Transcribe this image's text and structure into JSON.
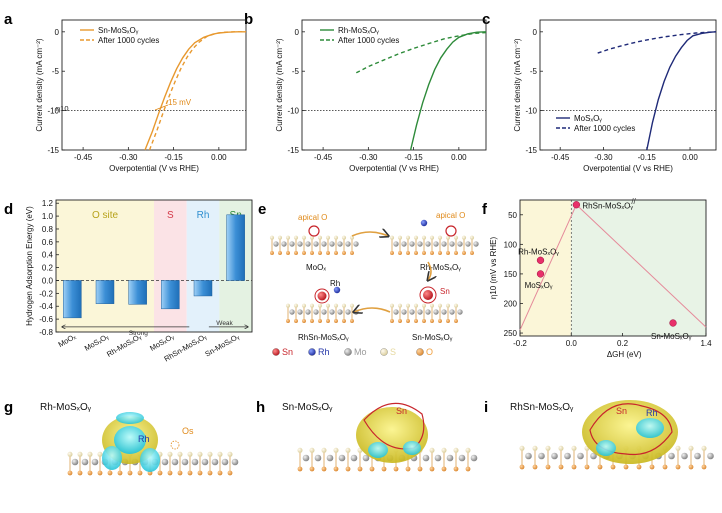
{
  "panel_labels": {
    "a": "a",
    "b": "b",
    "c": "c",
    "d": "d",
    "e": "e",
    "f": "f",
    "g": "g",
    "h": "h",
    "i": "i"
  },
  "colors": {
    "a_series": "#e8992f",
    "b_series": "#2e8b3a",
    "c_series": "#1f2a78",
    "d_bar": "#3c8fd6",
    "f_point": "#e8306a",
    "f_line": "#e58a9a",
    "d_band_O": "#fbf6d8",
    "d_band_S": "#fbe3e6",
    "d_band_Rh": "#e3f1fb",
    "d_band_Sn": "#e4f2e2"
  },
  "chart_data": [
    {
      "id": "a",
      "type": "line",
      "xlabel": "Overpotential (V vs RHE)",
      "ylabel": "Current density (mA cm⁻²)",
      "xlim": [
        -0.52,
        0.09
      ],
      "ylim": [
        -15,
        1.5
      ],
      "xticks": [
        -0.45,
        -0.3,
        -0.15,
        0.0
      ],
      "xtick_labels": [
        "-0.45",
        "-0.30",
        "-0.15",
        "0.00"
      ],
      "yticks": [
        0,
        -5,
        -10,
        -15
      ],
      "ytick_labels": [
        "0",
        "-5",
        "-10",
        "-15"
      ],
      "series": [
        {
          "name": "Sn-MoSₓOᵧ",
          "style": "solid",
          "x": [
            -0.245,
            -0.22,
            -0.2,
            -0.18,
            -0.16,
            -0.14,
            -0.12,
            -0.1,
            -0.08,
            -0.05,
            -0.02,
            0.0,
            0.03,
            0.06,
            0.09
          ],
          "y": [
            -15,
            -12.6,
            -10.4,
            -8.3,
            -6.4,
            -4.7,
            -3.3,
            -2.2,
            -1.4,
            -0.7,
            -0.3,
            -0.15,
            -0.05,
            0,
            0
          ]
        },
        {
          "name": "After 1000 cycles",
          "style": "dashed",
          "x": [
            -0.23,
            -0.205,
            -0.185,
            -0.165,
            -0.145,
            -0.125,
            -0.105,
            -0.085,
            -0.065,
            -0.04,
            -0.01,
            0.02,
            0.05,
            0.09
          ],
          "y": [
            -15,
            -12.5,
            -10.3,
            -8.2,
            -6.3,
            -4.6,
            -3.2,
            -2.1,
            -1.3,
            -0.6,
            -0.2,
            -0.05,
            0,
            0
          ]
        }
      ],
      "annotations": {
        "eta10_label": "η10",
        "delta_label": "15 mV",
        "hline": -10
      }
    },
    {
      "id": "b",
      "type": "line",
      "xlabel": "Overpotential (V vs RHE)",
      "ylabel": "Current density (mA cm⁻²)",
      "xlim": [
        -0.52,
        0.09
      ],
      "ylim": [
        -15,
        1.5
      ],
      "xticks": [
        -0.45,
        -0.3,
        -0.15,
        0.0
      ],
      "xtick_labels": [
        "-0.45",
        "-0.30",
        "-0.15",
        "0.00"
      ],
      "yticks": [
        0,
        -5,
        -10,
        -15
      ],
      "ytick_labels": [
        "0",
        "-5",
        "-10",
        "-15"
      ],
      "series": [
        {
          "name": "Rh-MoSₓOᵧ",
          "style": "solid",
          "x": [
            -0.16,
            -0.14,
            -0.12,
            -0.1,
            -0.08,
            -0.06,
            -0.04,
            -0.02,
            0.0,
            0.03,
            0.06,
            0.09
          ],
          "y": [
            -15,
            -11.8,
            -9.0,
            -6.7,
            -4.8,
            -3.3,
            -2.2,
            -1.3,
            -0.7,
            -0.25,
            -0.05,
            0
          ]
        },
        {
          "name": "After 1000 cycles",
          "style": "dashed",
          "x": [
            -0.34,
            -0.3,
            -0.25,
            -0.2,
            -0.15,
            -0.1,
            -0.05,
            0.0,
            0.05,
            0.09
          ],
          "y": [
            -5.2,
            -4.4,
            -3.6,
            -2.8,
            -2.1,
            -1.5,
            -0.9,
            -0.5,
            -0.2,
            -0.1
          ]
        }
      ],
      "annotations": {
        "hline": -10
      }
    },
    {
      "id": "c",
      "type": "line",
      "xlabel": "Overpotential (V vs RHE)",
      "ylabel": "Current density (mA cm⁻²)",
      "xlim": [
        -0.52,
        0.09
      ],
      "ylim": [
        -15,
        1.5
      ],
      "xticks": [
        -0.45,
        -0.3,
        -0.15,
        0.0
      ],
      "xtick_labels": [
        "-0.45",
        "-0.30",
        "-0.15",
        "0.00"
      ],
      "yticks": [
        0,
        -5,
        -10,
        -15
      ],
      "ytick_labels": [
        "0",
        "-5",
        "-10",
        "-15"
      ],
      "series": [
        {
          "name": "MoSₓOᵧ",
          "style": "solid",
          "x": [
            -0.15,
            -0.13,
            -0.11,
            -0.09,
            -0.07,
            -0.05,
            -0.03,
            -0.01,
            0.01,
            0.04,
            0.07,
            0.09
          ],
          "y": [
            -15,
            -11.5,
            -8.6,
            -6.3,
            -4.5,
            -3.1,
            -2.0,
            -1.1,
            -0.5,
            -0.2,
            -0.05,
            0
          ]
        },
        {
          "name": "After 1000 cycles",
          "style": "dashed",
          "x": [
            -0.32,
            -0.28,
            -0.23,
            -0.18,
            -0.13,
            -0.08,
            -0.03,
            0.02,
            0.06,
            0.09
          ],
          "y": [
            -2.7,
            -2.2,
            -1.7,
            -1.25,
            -0.9,
            -0.6,
            -0.35,
            -0.15,
            -0.05,
            0
          ]
        }
      ],
      "annotations": {
        "hline": -10
      }
    },
    {
      "id": "d",
      "type": "bar",
      "ylabel": "Hydrogen Adsorption Energy (eV)",
      "categories": [
        "MoOₓ",
        "MoSₓOᵧ",
        "Rh-MoSₓOᵧ",
        "MoSₓOᵧ",
        "RhSn-MoSₓOᵧ",
        "Sn-MoSₓOᵧ"
      ],
      "values": [
        -0.58,
        -0.36,
        -0.37,
        -0.44,
        -0.24,
        1.02
      ],
      "ylim": [
        -0.8,
        1.25
      ],
      "yticks": [
        1.2,
        1.0,
        0.8,
        0.6,
        0.4,
        0.2,
        0.0,
        -0.2,
        -0.4,
        -0.6,
        -0.8
      ],
      "ytick_labels": [
        "1.2",
        "1.0",
        "0.8",
        "0.6",
        "0.4",
        "0.2",
        "0.0",
        "-0.2",
        "-0.4",
        "-0.6",
        "-0.8"
      ],
      "bands": [
        "O site",
        "S",
        "Rh",
        "Sn"
      ],
      "arrow_labels": {
        "strong": "Strong",
        "weak": "Weak"
      }
    },
    {
      "id": "f",
      "type": "scatter",
      "ylabel": "η10 (mV vs RHE)",
      "xlabel": "ΔGH (eV)",
      "xticks": [
        -0.2,
        0.0,
        0.2,
        1.4
      ],
      "xtick_labels": [
        "-0.2",
        "0.0",
        "0.2",
        "1.4"
      ],
      "yticks": [
        50,
        100,
        150,
        200,
        250
      ],
      "ytick_labels": [
        "50",
        "100",
        "150",
        "200",
        "250"
      ],
      "ylim": [
        25,
        255
      ],
      "points": [
        {
          "label": "RhSn-MoSₓOᵧ",
          "x": 0.02,
          "y": 33
        },
        {
          "label": "Rh-MoSₓOᵧ",
          "x": -0.12,
          "y": 127
        },
        {
          "label": "MoSₓOᵧ",
          "x": -0.12,
          "y": 150
        },
        {
          "label": "Sn-MoSₓOᵧ",
          "x": 1.26,
          "y": 233
        }
      ]
    }
  ],
  "panel_e": {
    "top_left_label": "apical O",
    "top_right_label": "apical O",
    "mox_label": "MoOₓ",
    "rh_moso_label": "Rh-MoSₓOᵧ",
    "rh_atom_label": "Rh",
    "sn_atom_label": "Sn",
    "rhsn_label": "RhSn-MoSₓOᵧ",
    "sn_moso_label": "Sn-MoSₓOᵧ",
    "legend": [
      {
        "label": "Sn",
        "color": "#c8262c"
      },
      {
        "label": "Rh",
        "color": "#2436a8"
      },
      {
        "label": "Mo",
        "color": "#9a9a9a"
      },
      {
        "label": "S",
        "color": "#e6d9a0"
      },
      {
        "label": "O",
        "color": "#f0a040"
      }
    ]
  },
  "panel_g": {
    "title": "Rh-MoSₓOᵧ",
    "rh_label": "Rh",
    "os_label": "Os"
  },
  "panel_h": {
    "title": "Sn-MoSₓOᵧ",
    "sn_label": "Sn"
  },
  "panel_i": {
    "title": "RhSn-MoSₓOᵧ",
    "sn_label": "Sn",
    "rh_label": "Rh"
  }
}
